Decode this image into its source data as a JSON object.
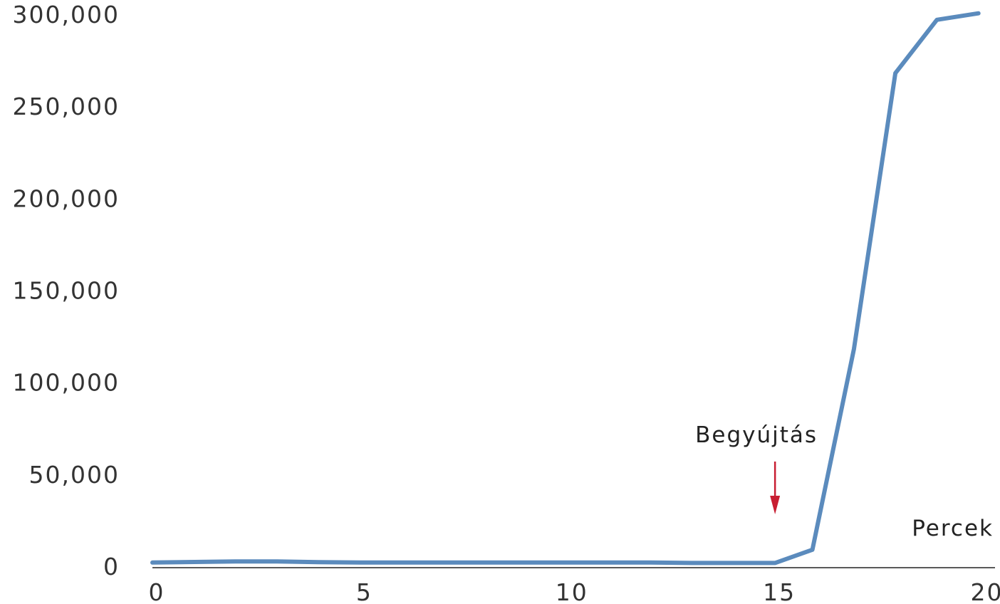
{
  "chart_data": {
    "type": "line",
    "title": "",
    "xlabel": "Percek",
    "ylabel": "",
    "xlim": [
      0,
      20.3
    ],
    "ylim": [
      0,
      300000
    ],
    "grid": false,
    "x_ticks": [
      0,
      5,
      10,
      15,
      20
    ],
    "x_tick_labels": [
      "0",
      "5",
      "10",
      "15",
      "20"
    ],
    "y_ticks": [
      0,
      50000,
      100000,
      150000,
      200000,
      250000,
      300000
    ],
    "y_tick_labels": [
      "0",
      "50,000",
      "100,000",
      "150,000",
      "200,000",
      "250,000",
      "300,000"
    ],
    "series": [
      {
        "color": "#5b8bbd",
        "x": [
          0,
          2,
          3,
          4,
          5,
          6,
          7,
          8,
          9,
          10,
          11,
          12,
          13,
          14,
          15,
          15.9,
          16.9,
          17.9,
          18.9,
          19.9
        ],
        "y": [
          2000,
          2600,
          2600,
          2200,
          2000,
          2000,
          2000,
          2000,
          2000,
          2000,
          2000,
          2000,
          1800,
          1800,
          1800,
          9000,
          118000,
          268000,
          297000,
          300500
        ]
      }
    ],
    "annotations": [
      {
        "text": "Begyújtás",
        "x": 15,
        "color": "#c81e32"
      }
    ]
  }
}
